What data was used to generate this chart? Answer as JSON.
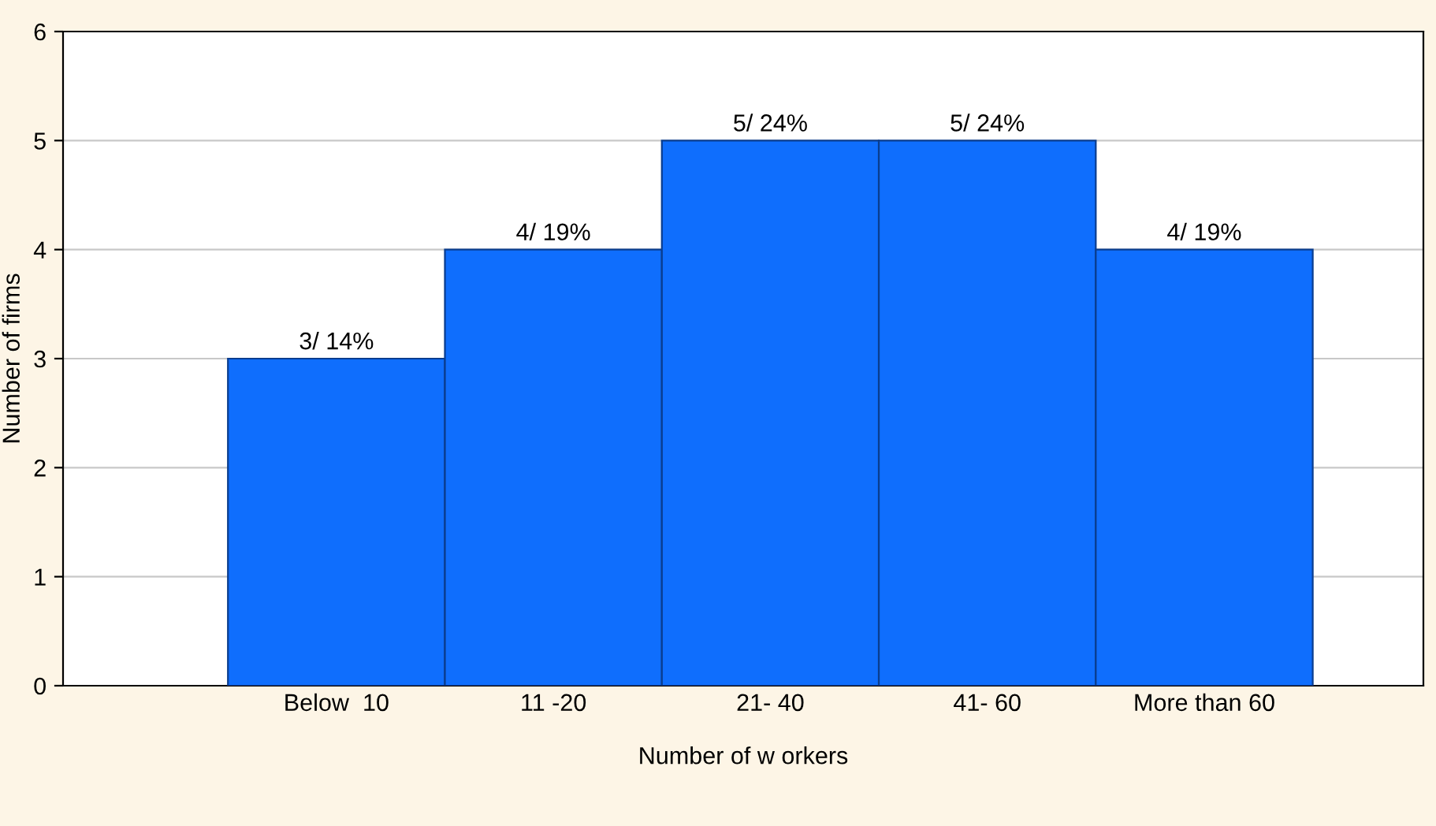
{
  "chart_data": {
    "type": "bar",
    "xlabel": "Number of w orkers",
    "ylabel": "Number of firms",
    "categories": [
      "Below  10",
      "11 -20",
      "21- 40",
      "41- 60",
      "More than 60"
    ],
    "values": [
      3,
      4,
      5,
      5,
      4
    ],
    "value_labels": [
      "3/ 14%",
      "4/ 19%",
      "5/ 24%",
      "5/ 24%",
      "4/ 19%"
    ],
    "color": "#0f6efd",
    "ylim": [
      0,
      6
    ],
    "yticks": [
      0,
      1,
      2,
      3,
      4,
      5,
      6
    ],
    "grid": "y"
  }
}
